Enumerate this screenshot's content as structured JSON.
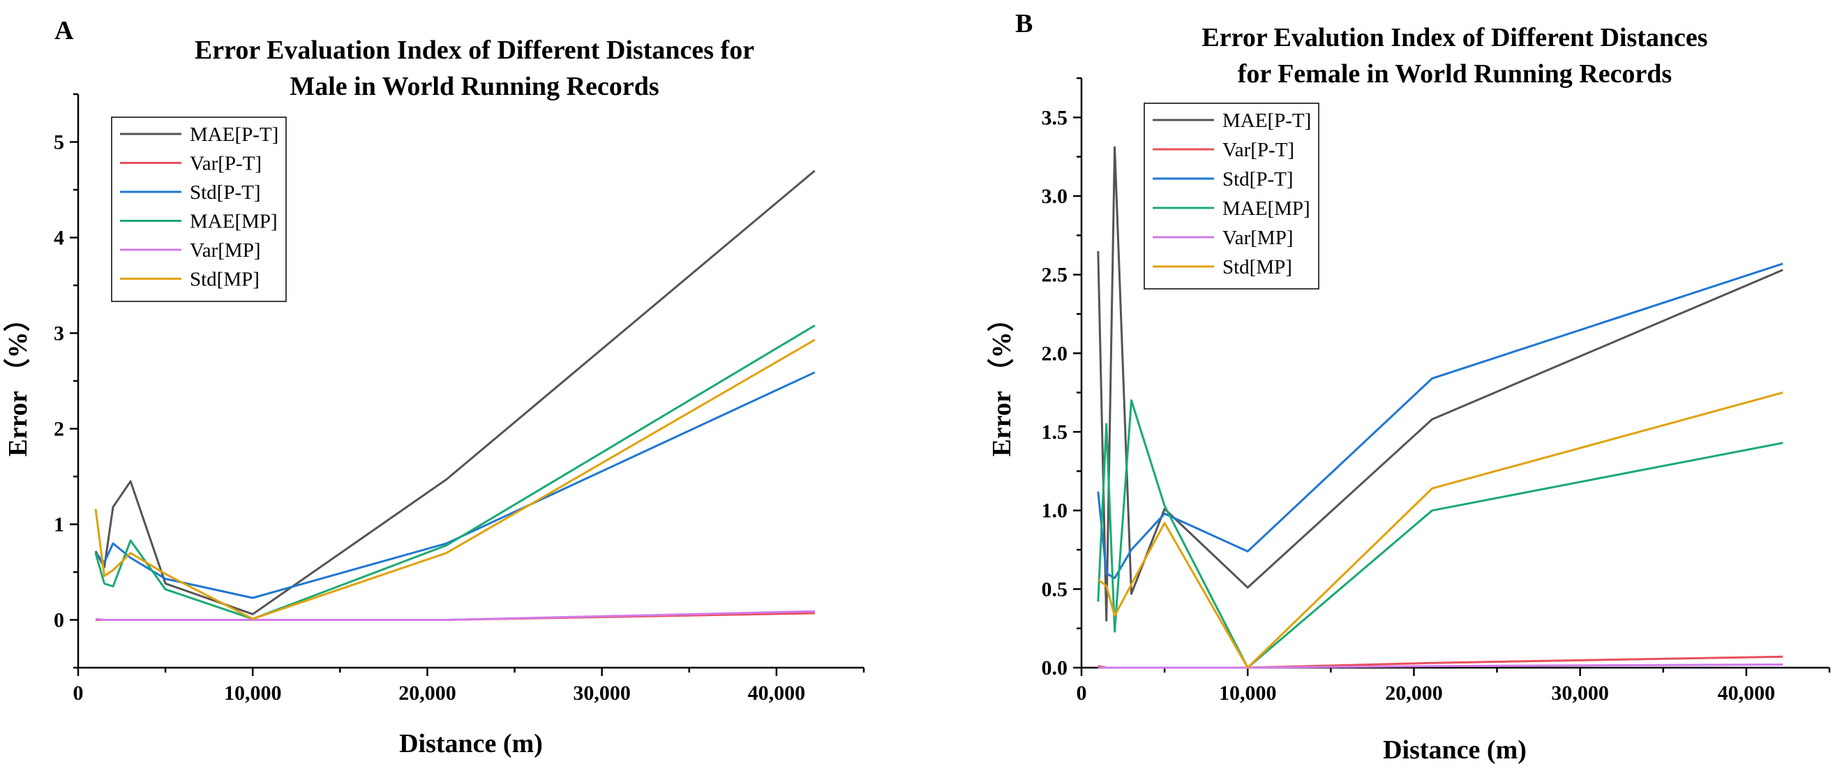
{
  "figure": {
    "panels": [
      "A",
      "B"
    ]
  },
  "chart_data": [
    {
      "panel": "A",
      "type": "line",
      "title_lines": [
        "Error Evaluation Index of Different Distances for",
        "Male in World Running Records"
      ],
      "xlabel": "Distance (m)",
      "ylabel": "Error （%）",
      "xlim": [
        0,
        45000
      ],
      "ylim": [
        -0.5,
        5.5
      ],
      "xticks": [
        0,
        10000,
        20000,
        30000,
        40000
      ],
      "xtick_labels": [
        "0",
        "10,000",
        "20,000",
        "30,000",
        "40,000"
      ],
      "yticks": [
        0,
        1,
        2,
        3,
        4,
        5
      ],
      "ytick_labels": [
        "0",
        "1",
        "2",
        "3",
        "4",
        "5"
      ],
      "grid": false,
      "legend_position": "top-left",
      "series": [
        {
          "name": "MAE[P-T]",
          "color": "#555555",
          "x": [
            1000,
            1500,
            2000,
            3000,
            5000,
            10000,
            21097,
            42195
          ],
          "y": [
            0.72,
            0.55,
            1.18,
            1.45,
            0.38,
            0.06,
            1.47,
            4.7
          ]
        },
        {
          "name": "Var[P-T]",
          "color": "#e8505b",
          "x": [
            1000,
            1500,
            2000,
            3000,
            5000,
            10000,
            21097,
            42195
          ],
          "y": [
            0.0,
            0.0,
            0.0,
            0.0,
            0.0,
            0.0,
            0.0,
            0.07
          ]
        },
        {
          "name": "Std[P-T]",
          "color": "#1f77d4",
          "x": [
            1000,
            1500,
            2000,
            3000,
            5000,
            10000,
            21097,
            42195
          ],
          "y": [
            0.7,
            0.6,
            0.8,
            0.65,
            0.43,
            0.23,
            0.8,
            2.59
          ]
        },
        {
          "name": "MAE[MP]",
          "color": "#1aaa73",
          "x": [
            1000,
            1500,
            2000,
            3000,
            5000,
            10000,
            21097,
            42195
          ],
          "y": [
            0.7,
            0.38,
            0.35,
            0.83,
            0.32,
            0.01,
            0.78,
            3.08
          ]
        },
        {
          "name": "Var[MP]",
          "color": "#d17be8",
          "x": [
            1000,
            1500,
            2000,
            3000,
            5000,
            10000,
            21097,
            42195
          ],
          "y": [
            0.01,
            0.0,
            0.0,
            0.0,
            0.0,
            0.0,
            0.0,
            0.09
          ]
        },
        {
          "name": "Std[MP]",
          "color": "#e0a20b",
          "x": [
            1000,
            1500,
            2000,
            3000,
            5000,
            10000,
            21097,
            42195
          ],
          "y": [
            1.16,
            0.46,
            0.52,
            0.7,
            0.48,
            0.01,
            0.7,
            2.93
          ]
        }
      ]
    },
    {
      "panel": "B",
      "type": "line",
      "title_lines": [
        "Error Evalution Index of Different Distances",
        "for Female in World Running Records"
      ],
      "xlabel": "Distance (m)",
      "ylabel": "Error （%）",
      "xlim": [
        0,
        45000
      ],
      "ylim": [
        0,
        3.75
      ],
      "xticks": [
        0,
        10000,
        20000,
        30000,
        40000
      ],
      "xtick_labels": [
        "0",
        "10,000",
        "20,000",
        "30,000",
        "40,000"
      ],
      "yticks": [
        0,
        0.5,
        1.0,
        1.5,
        2.0,
        2.5,
        3.0,
        3.5
      ],
      "ytick_labels": [
        "0.0",
        "0.5",
        "1.0",
        "1.5",
        "2.0",
        "2.5",
        "3.0",
        "3.5"
      ],
      "grid": false,
      "legend_position": "top-left",
      "series": [
        {
          "name": "MAE[P-T]",
          "color": "#555555",
          "x": [
            1000,
            1500,
            2000,
            3000,
            5000,
            10000,
            21097,
            42195
          ],
          "y": [
            2.65,
            0.3,
            3.31,
            0.47,
            1.01,
            0.51,
            1.58,
            2.53
          ]
        },
        {
          "name": "Var[P-T]",
          "color": "#e8505b",
          "x": [
            1000,
            1500,
            2000,
            3000,
            5000,
            10000,
            21097,
            42195
          ],
          "y": [
            0.01,
            0.0,
            0.0,
            0.0,
            0.0,
            0.0,
            0.03,
            0.07
          ]
        },
        {
          "name": "Std[P-T]",
          "color": "#1f77d4",
          "x": [
            1000,
            1500,
            2000,
            3000,
            5000,
            10000,
            21097,
            42195
          ],
          "y": [
            1.12,
            0.6,
            0.57,
            0.75,
            0.98,
            0.74,
            1.84,
            2.57
          ]
        },
        {
          "name": "MAE[MP]",
          "color": "#1aaa73",
          "x": [
            1000,
            1500,
            2000,
            3000,
            5000,
            10000,
            21097,
            42195
          ],
          "y": [
            0.42,
            1.55,
            0.23,
            1.7,
            1.03,
            0.0,
            1.0,
            1.43
          ]
        },
        {
          "name": "Var[MP]",
          "color": "#d17be8",
          "x": [
            1000,
            1500,
            2000,
            3000,
            5000,
            10000,
            21097,
            42195
          ],
          "y": [
            0.0,
            0.0,
            0.0,
            0.0,
            0.0,
            0.0,
            0.01,
            0.02
          ]
        },
        {
          "name": "Std[MP]",
          "color": "#e0a20b",
          "x": [
            1000,
            1500,
            2000,
            3000,
            5000,
            10000,
            21097,
            42195
          ],
          "y": [
            0.56,
            0.52,
            0.33,
            0.53,
            0.92,
            0.0,
            1.14,
            1.75
          ]
        }
      ]
    }
  ]
}
